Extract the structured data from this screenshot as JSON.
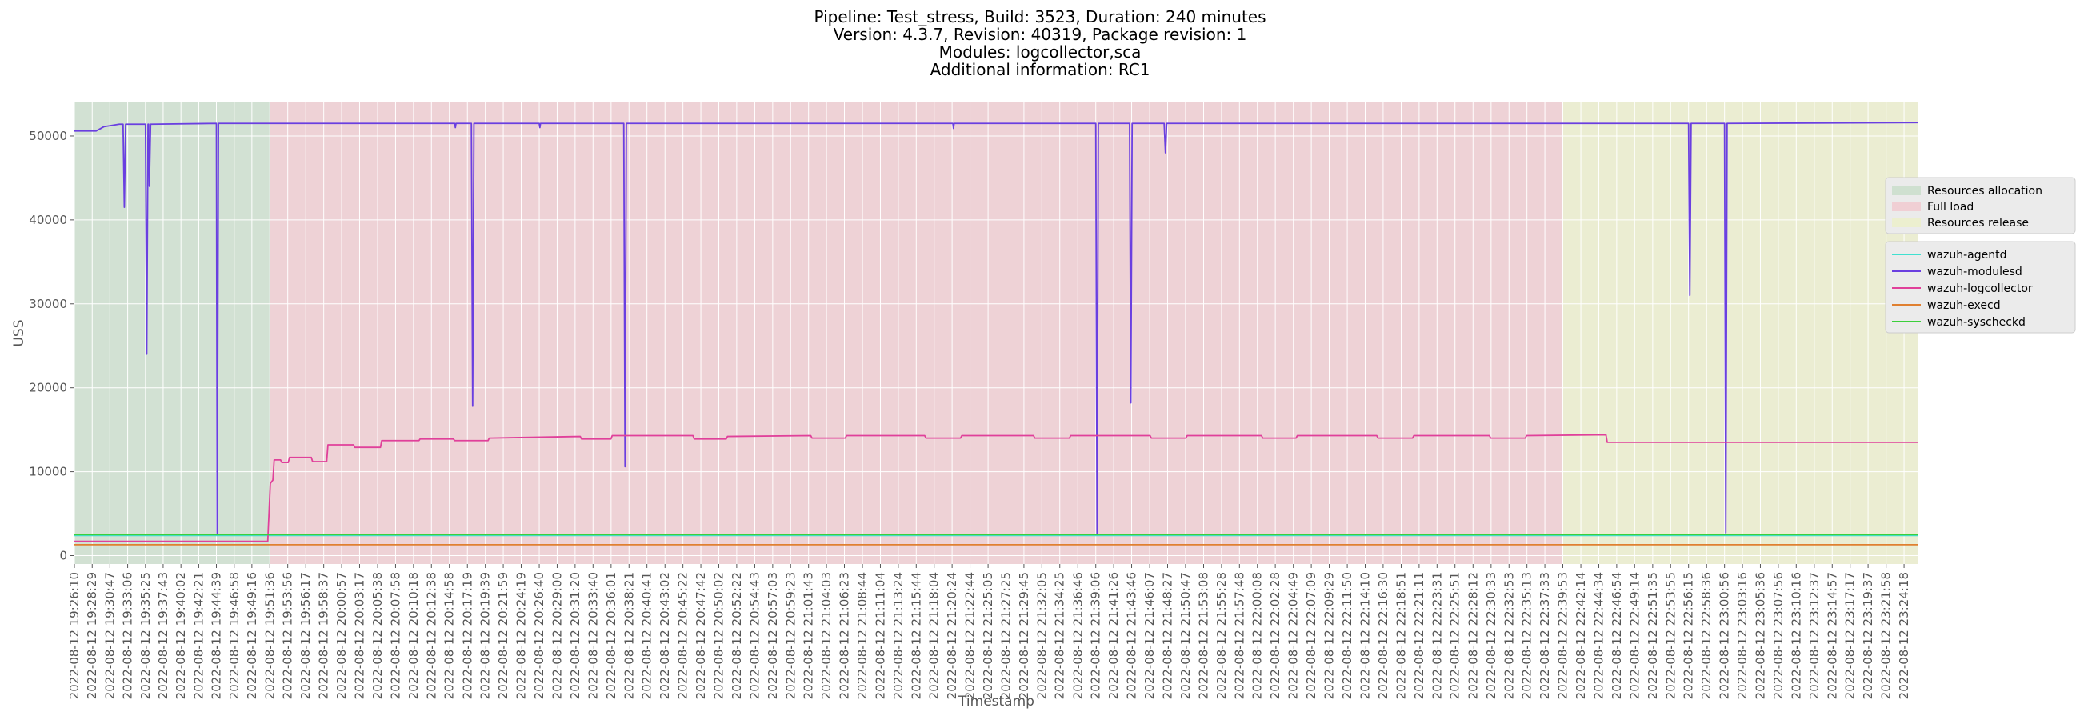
{
  "title_lines": [
    "Pipeline: Test_stress, Build: 3523, Duration: 240 minutes",
    "Version: 4.3.7, Revision: 40319, Package revision: 1",
    "Modules: logcollector,sca",
    "Additional information: RC1"
  ],
  "chart_data": {
    "type": "line",
    "xlabel": "Timestamp",
    "ylabel": "USS",
    "ylim": [
      -1000,
      54000
    ],
    "yticks": [
      0,
      10000,
      20000,
      30000,
      40000,
      50000
    ],
    "grid": true,
    "legend_placement": "right",
    "x_tick_labels": [
      "2022-08-12 19:26:10",
      "2022-08-12 19:28:29",
      "2022-08-12 19:30:47",
      "2022-08-12 19:33:06",
      "2022-08-12 19:35:25",
      "2022-08-12 19:37:43",
      "2022-08-12 19:40:02",
      "2022-08-12 19:42:21",
      "2022-08-12 19:44:39",
      "2022-08-12 19:46:58",
      "2022-08-12 19:49:16",
      "2022-08-12 19:51:36",
      "2022-08-12 19:53:56",
      "2022-08-12 19:56:17",
      "2022-08-12 19:58:37",
      "2022-08-12 20:00:57",
      "2022-08-12 20:03:17",
      "2022-08-12 20:05:38",
      "2022-08-12 20:07:58",
      "2022-08-12 20:10:18",
      "2022-08-12 20:12:38",
      "2022-08-12 20:14:58",
      "2022-08-12 20:17:19",
      "2022-08-12 20:19:39",
      "2022-08-12 20:21:59",
      "2022-08-12 20:24:19",
      "2022-08-12 20:26:40",
      "2022-08-12 20:29:00",
      "2022-08-12 20:31:20",
      "2022-08-12 20:33:40",
      "2022-08-12 20:36:01",
      "2022-08-12 20:38:21",
      "2022-08-12 20:40:41",
      "2022-08-12 20:43:02",
      "2022-08-12 20:45:22",
      "2022-08-12 20:47:42",
      "2022-08-12 20:50:02",
      "2022-08-12 20:52:22",
      "2022-08-12 20:54:43",
      "2022-08-12 20:57:03",
      "2022-08-12 20:59:23",
      "2022-08-12 21:01:43",
      "2022-08-12 21:04:03",
      "2022-08-12 21:06:23",
      "2022-08-12 21:08:44",
      "2022-08-12 21:11:04",
      "2022-08-12 21:13:24",
      "2022-08-12 21:15:44",
      "2022-08-12 21:18:04",
      "2022-08-12 21:20:24",
      "2022-08-12 21:22:44",
      "2022-08-12 21:25:05",
      "2022-08-12 21:27:25",
      "2022-08-12 21:29:45",
      "2022-08-12 21:32:05",
      "2022-08-12 21:34:25",
      "2022-08-12 21:36:46",
      "2022-08-12 21:39:06",
      "2022-08-12 21:41:26",
      "2022-08-12 21:43:46",
      "2022-08-12 21:46:07",
      "2022-08-12 21:48:27",
      "2022-08-12 21:50:47",
      "2022-08-12 21:53:08",
      "2022-08-12 21:55:28",
      "2022-08-12 21:57:48",
      "2022-08-12 22:00:08",
      "2022-08-12 22:02:28",
      "2022-08-12 22:04:49",
      "2022-08-12 22:07:09",
      "2022-08-12 22:09:29",
      "2022-08-12 22:11:50",
      "2022-08-12 22:14:10",
      "2022-08-12 22:16:30",
      "2022-08-12 22:18:51",
      "2022-08-12 22:21:11",
      "2022-08-12 22:23:31",
      "2022-08-12 22:25:51",
      "2022-08-12 22:28:12",
      "2022-08-12 22:30:33",
      "2022-08-12 22:32:53",
      "2022-08-12 22:35:13",
      "2022-08-12 22:37:33",
      "2022-08-12 22:39:53",
      "2022-08-12 22:42:14",
      "2022-08-12 22:44:34",
      "2022-08-12 22:46:54",
      "2022-08-12 22:49:14",
      "2022-08-12 22:51:35",
      "2022-08-12 22:53:55",
      "2022-08-12 22:56:15",
      "2022-08-12 22:58:36",
      "2022-08-12 23:00:56",
      "2022-08-12 23:03:16",
      "2022-08-12 23:05:36",
      "2022-08-12 23:07:56",
      "2022-08-12 23:10:16",
      "2022-08-12 23:12:37",
      "2022-08-12 23:14:57",
      "2022-08-12 23:17:17",
      "2022-08-12 23:19:37",
      "2022-08-12 23:21:58",
      "2022-08-12 23:24:18"
    ],
    "phases": [
      {
        "name": "Resources allocation",
        "start": "2022-08-12 19:26:10",
        "end": "2022-08-12 19:51:36",
        "color": "#cfe0d0"
      },
      {
        "name": "Full load",
        "start": "2022-08-12 19:51:36",
        "end": "2022-08-12 22:39:53",
        "color": "#f0cfd4"
      },
      {
        "name": "Resources release",
        "start": "2022-08-12 22:39:53",
        "end": "2022-08-12 23:26:10",
        "color": "#ecefcf"
      }
    ],
    "series": [
      {
        "name": "wazuh-agentd",
        "color": "#40e0d0",
        "points": [
          [
            "2022-08-12 19:26:10",
            2400
          ],
          [
            "2022-08-12 23:26:10",
            2400
          ]
        ]
      },
      {
        "name": "wazuh-modulesd",
        "color": "#6a3fe0",
        "points": [
          [
            "2022-08-12 19:26:10",
            50600
          ],
          [
            "2022-08-12 19:29:00",
            50600
          ],
          [
            "2022-08-12 19:30:00",
            51100
          ],
          [
            "2022-08-12 19:32:00",
            51400
          ],
          [
            "2022-08-12 19:32:30",
            51400
          ],
          [
            "2022-08-12 19:32:40",
            41500
          ],
          [
            "2022-08-12 19:32:50",
            51400
          ],
          [
            "2022-08-12 19:35:25",
            51400
          ],
          [
            "2022-08-12 19:35:35",
            24000
          ],
          [
            "2022-08-12 19:35:45",
            51400
          ],
          [
            "2022-08-12 19:35:50",
            51400
          ],
          [
            "2022-08-12 19:35:55",
            44000
          ],
          [
            "2022-08-12 19:36:05",
            51400
          ],
          [
            "2022-08-12 19:44:39",
            51500
          ],
          [
            "2022-08-12 19:44:45",
            2500
          ],
          [
            "2022-08-12 19:44:55",
            51500
          ],
          [
            "2022-08-12 20:15:40",
            51500
          ],
          [
            "2022-08-12 20:15:45",
            51000
          ],
          [
            "2022-08-12 20:15:50",
            51500
          ],
          [
            "2022-08-12 20:17:50",
            51500
          ],
          [
            "2022-08-12 20:18:00",
            17800
          ],
          [
            "2022-08-12 20:18:10",
            51500
          ],
          [
            "2022-08-12 20:26:40",
            51500
          ],
          [
            "2022-08-12 20:26:45",
            51000
          ],
          [
            "2022-08-12 20:26:50",
            51500
          ],
          [
            "2022-08-12 20:37:40",
            51500
          ],
          [
            "2022-08-12 20:37:50",
            10600
          ],
          [
            "2022-08-12 20:38:00",
            51500
          ],
          [
            "2022-08-12 21:20:30",
            51500
          ],
          [
            "2022-08-12 21:20:35",
            50900
          ],
          [
            "2022-08-12 21:20:40",
            51500
          ],
          [
            "2022-08-12 21:39:06",
            51500
          ],
          [
            "2022-08-12 21:39:16",
            2500
          ],
          [
            "2022-08-12 21:39:26",
            51500
          ],
          [
            "2022-08-12 21:43:30",
            51500
          ],
          [
            "2022-08-12 21:43:40",
            18200
          ],
          [
            "2022-08-12 21:43:50",
            51500
          ],
          [
            "2022-08-12 21:48:00",
            51500
          ],
          [
            "2022-08-12 21:48:10",
            48000
          ],
          [
            "2022-08-12 21:48:20",
            51500
          ],
          [
            "2022-08-12 22:56:15",
            51500
          ],
          [
            "2022-08-12 22:56:25",
            31000
          ],
          [
            "2022-08-12 22:56:35",
            51500
          ],
          [
            "2022-08-12 23:00:56",
            51500
          ],
          [
            "2022-08-12 23:01:06",
            2700
          ],
          [
            "2022-08-12 23:01:16",
            51500
          ],
          [
            "2022-08-12 23:26:10",
            51600
          ]
        ]
      },
      {
        "name": "wazuh-logcollector",
        "color": "#e0409a",
        "points": [
          [
            "2022-08-12 19:26:10",
            1700
          ],
          [
            "2022-08-12 19:51:20",
            1700
          ],
          [
            "2022-08-12 19:51:40",
            8600
          ],
          [
            "2022-08-12 19:52:00",
            9000
          ],
          [
            "2022-08-12 19:52:10",
            11400
          ],
          [
            "2022-08-12 19:53:00",
            11400
          ],
          [
            "2022-08-12 19:53:10",
            11100
          ],
          [
            "2022-08-12 19:54:00",
            11100
          ],
          [
            "2022-08-12 19:54:10",
            11700
          ],
          [
            "2022-08-12 19:57:00",
            11700
          ],
          [
            "2022-08-12 19:57:10",
            11200
          ],
          [
            "2022-08-12 19:59:00",
            11200
          ],
          [
            "2022-08-12 19:59:10",
            13200
          ],
          [
            "2022-08-12 20:02:30",
            13200
          ],
          [
            "2022-08-12 20:02:40",
            12900
          ],
          [
            "2022-08-12 20:06:00",
            12900
          ],
          [
            "2022-08-12 20:06:10",
            13700
          ],
          [
            "2022-08-12 20:11:00",
            13700
          ],
          [
            "2022-08-12 20:11:10",
            13900
          ],
          [
            "2022-08-12 20:15:30",
            13900
          ],
          [
            "2022-08-12 20:15:40",
            13700
          ],
          [
            "2022-08-12 20:20:00",
            13700
          ],
          [
            "2022-08-12 20:20:10",
            14000
          ],
          [
            "2022-08-12 20:32:00",
            14200
          ],
          [
            "2022-08-12 20:32:10",
            13900
          ],
          [
            "2022-08-12 20:36:00",
            13900
          ],
          [
            "2022-08-12 20:36:10",
            14300
          ],
          [
            "2022-08-12 20:46:40",
            14300
          ],
          [
            "2022-08-12 20:46:50",
            13900
          ],
          [
            "2022-08-12 20:51:00",
            13900
          ],
          [
            "2022-08-12 20:51:10",
            14200
          ],
          [
            "2022-08-12 21:02:00",
            14300
          ],
          [
            "2022-08-12 21:02:10",
            14000
          ],
          [
            "2022-08-12 21:06:30",
            14000
          ],
          [
            "2022-08-12 21:06:40",
            14300
          ],
          [
            "2022-08-12 21:16:50",
            14300
          ],
          [
            "2022-08-12 21:17:00",
            14000
          ],
          [
            "2022-08-12 21:21:30",
            14000
          ],
          [
            "2022-08-12 21:21:40",
            14300
          ],
          [
            "2022-08-12 21:31:00",
            14300
          ],
          [
            "2022-08-12 21:31:10",
            14000
          ],
          [
            "2022-08-12 21:35:40",
            14000
          ],
          [
            "2022-08-12 21:35:50",
            14300
          ],
          [
            "2022-08-12 21:46:10",
            14300
          ],
          [
            "2022-08-12 21:46:20",
            14000
          ],
          [
            "2022-08-12 21:50:50",
            14000
          ],
          [
            "2022-08-12 21:51:00",
            14300
          ],
          [
            "2022-08-12 22:00:40",
            14300
          ],
          [
            "2022-08-12 22:00:50",
            14000
          ],
          [
            "2022-08-12 22:05:10",
            14000
          ],
          [
            "2022-08-12 22:05:20",
            14300
          ],
          [
            "2022-08-12 22:15:40",
            14300
          ],
          [
            "2022-08-12 22:15:50",
            14000
          ],
          [
            "2022-08-12 22:20:20",
            14000
          ],
          [
            "2022-08-12 22:20:30",
            14300
          ],
          [
            "2022-08-12 22:30:20",
            14300
          ],
          [
            "2022-08-12 22:30:30",
            14000
          ],
          [
            "2022-08-12 22:35:00",
            14000
          ],
          [
            "2022-08-12 22:35:10",
            14300
          ],
          [
            "2022-08-12 22:45:30",
            14400
          ],
          [
            "2022-08-12 22:45:40",
            13500
          ],
          [
            "2022-08-12 23:26:10",
            13500
          ]
        ]
      },
      {
        "name": "wazuh-execd",
        "color": "#e08030",
        "points": [
          [
            "2022-08-12 19:26:10",
            1300
          ],
          [
            "2022-08-12 23:26:10",
            1300
          ]
        ]
      },
      {
        "name": "wazuh-syscheckd",
        "color": "#3ccf3c",
        "points": [
          [
            "2022-08-12 19:26:10",
            2500
          ],
          [
            "2022-08-12 23:26:10",
            2500
          ]
        ]
      }
    ]
  }
}
